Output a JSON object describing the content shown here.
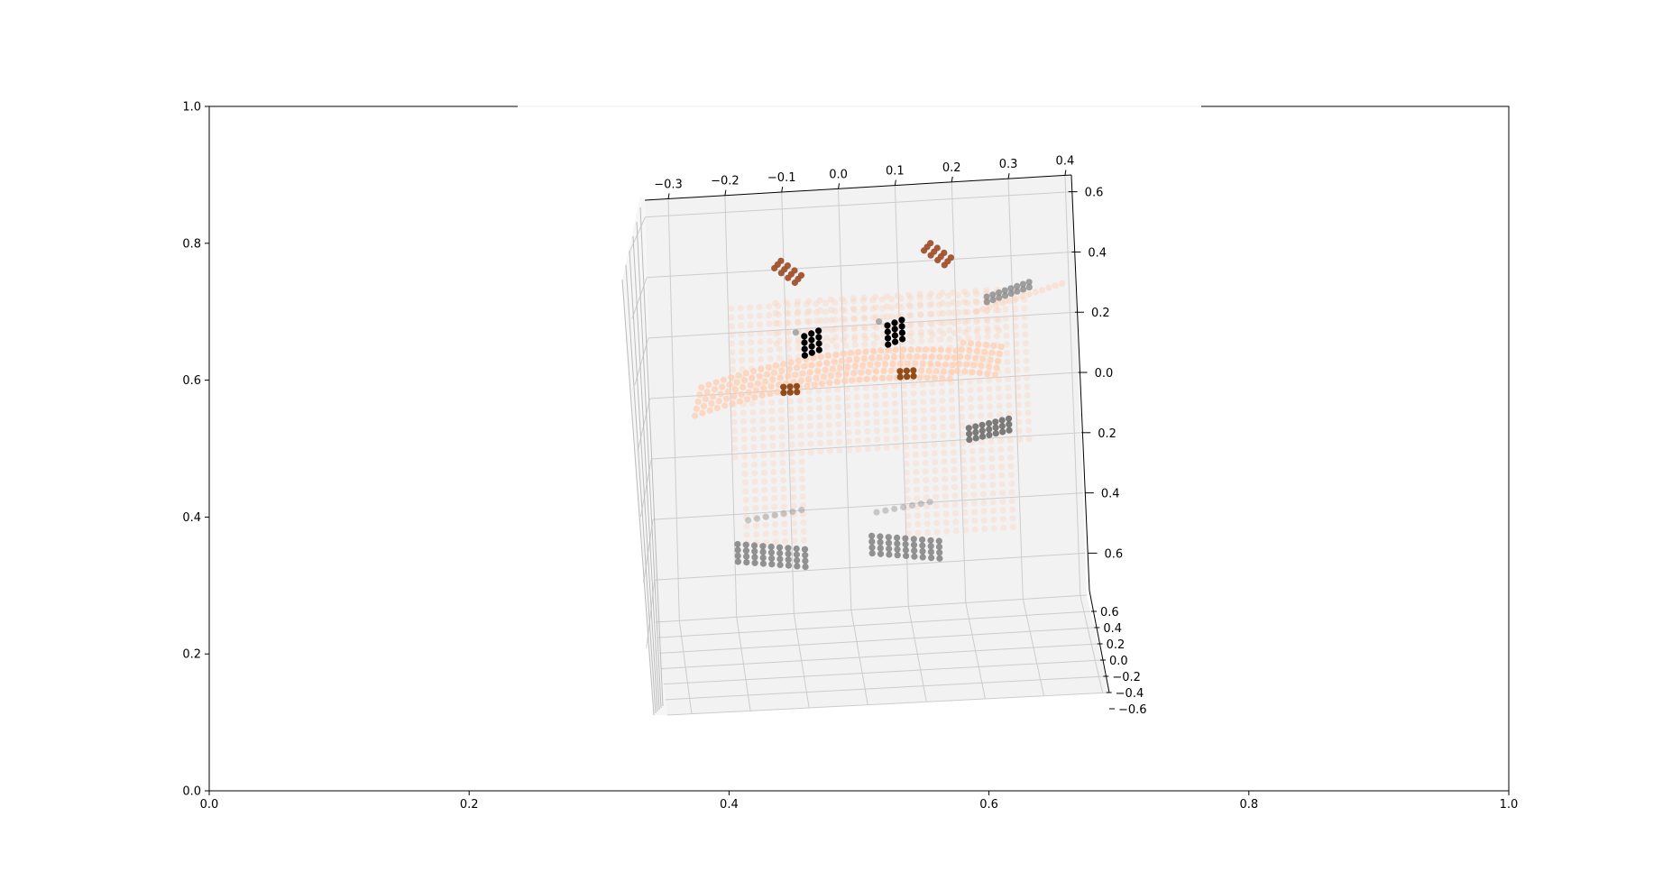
{
  "figure": {
    "background": "#ffffff"
  },
  "outer_axes": {
    "x_ticks": [
      "0.0",
      "0.2",
      "0.4",
      "0.6",
      "0.8",
      "1.0"
    ],
    "y_ticks": [
      "0.0",
      "0.2",
      "0.4",
      "0.6",
      "0.8",
      "1.0"
    ],
    "xlim": [
      0,
      1
    ],
    "ylim": [
      0,
      1
    ]
  },
  "chart_data": {
    "type": "scatter",
    "projection": "3d",
    "grid": true,
    "pane_color": "#f2f2f2",
    "title": "",
    "x_ticks": [
      "−0.3",
      "−0.2",
      "−0.1",
      "0.0",
      "0.1",
      "0.2",
      "0.3",
      "0.4"
    ],
    "z_ticks": [
      "0.6",
      "0.4",
      "0.2",
      "0.0",
      "0.2",
      "0.4",
      "0.6"
    ],
    "y_ticks": [
      "0.6",
      "0.4",
      "0.2",
      "0.0",
      "−0.2",
      "−0.4",
      "−0.6"
    ],
    "xlim": [
      -0.35,
      0.42
    ],
    "ylim": [
      -0.6,
      0.6
    ],
    "zlim": [
      -0.75,
      0.7
    ],
    "description_colors": {
      "body": "#ffcdb2",
      "ears": "#a0522d",
      "eyes": "#000000",
      "hooves": "#808080",
      "nose_spots": "#8b4513"
    },
    "series": [
      {
        "role": "body",
        "color": "#ffcdb2",
        "points": [
          {
            "x": -0.25,
            "z": 0.0
          },
          {
            "x": -0.2,
            "z": 0.02
          },
          {
            "x": -0.15,
            "z": 0.04
          },
          {
            "x": -0.1,
            "z": 0.05
          },
          {
            "x": -0.05,
            "z": 0.06
          },
          {
            "x": 0.0,
            "z": 0.07
          },
          {
            "x": 0.05,
            "z": 0.08
          },
          {
            "x": 0.1,
            "z": 0.08
          },
          {
            "x": 0.15,
            "z": 0.09
          },
          {
            "x": 0.2,
            "z": 0.09
          },
          {
            "x": 0.25,
            "z": 0.1
          },
          {
            "x": 0.3,
            "z": 0.1
          }
        ]
      },
      {
        "role": "ears",
        "color": "#a0522d",
        "points": [
          {
            "x": -0.12,
            "z": 0.45
          },
          {
            "x": -0.1,
            "z": 0.44
          },
          {
            "x": -0.08,
            "z": 0.42
          },
          {
            "x": 0.14,
            "z": 0.47
          },
          {
            "x": 0.16,
            "z": 0.46
          },
          {
            "x": 0.18,
            "z": 0.44
          }
        ]
      },
      {
        "role": "eyes",
        "color": "#000000",
        "points": [
          {
            "x": -0.07,
            "z": 0.18
          },
          {
            "x": -0.05,
            "z": 0.2
          },
          {
            "x": -0.03,
            "z": 0.16
          },
          {
            "x": 0.08,
            "z": 0.22
          },
          {
            "x": 0.1,
            "z": 0.2
          },
          {
            "x": 0.12,
            "z": 0.18
          }
        ]
      },
      {
        "role": "hooves",
        "color": "#808080",
        "points": [
          {
            "x": -0.2,
            "z": -0.55
          },
          {
            "x": -0.15,
            "z": -0.56
          },
          {
            "x": -0.1,
            "z": -0.55
          },
          {
            "x": 0.05,
            "z": -0.55
          },
          {
            "x": 0.1,
            "z": -0.56
          },
          {
            "x": 0.15,
            "z": -0.55
          },
          {
            "x": 0.25,
            "z": -0.15
          },
          {
            "x": 0.28,
            "z": 0.28
          }
        ]
      }
    ]
  }
}
